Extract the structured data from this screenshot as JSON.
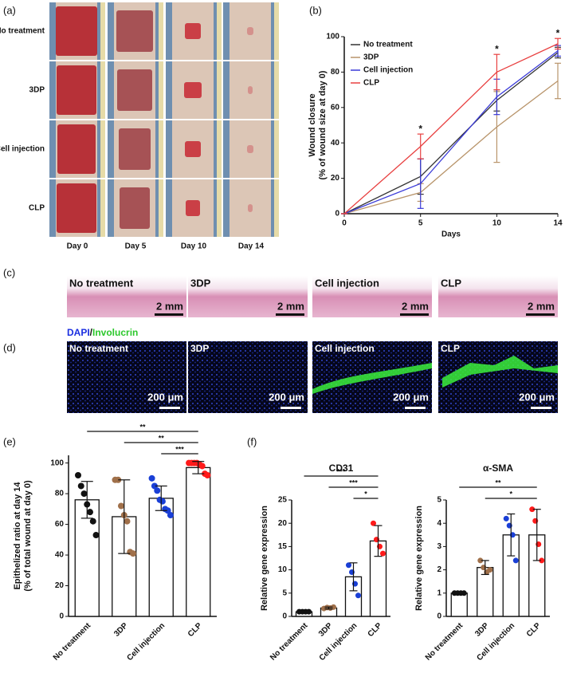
{
  "figure": {
    "panel_labels": [
      "(a)",
      "(b)",
      "(c)",
      "(d)",
      "(e)",
      "(f)"
    ],
    "photos": {
      "rows": [
        "No treatment",
        "3DP",
        "Cell injection",
        "CLP"
      ],
      "columns": [
        "Day 0",
        "Day 5",
        "Day 10",
        "Day 14"
      ]
    },
    "histology": {
      "labels": [
        "No treatment",
        "3DP",
        "Cell injection",
        "CLP"
      ],
      "scale_labels": [
        "2 mm",
        "2 mm",
        "2 mm",
        "2 mm"
      ]
    },
    "immuno": {
      "stain": [
        "DAPI",
        "/",
        "Involucrin"
      ],
      "labels": [
        "No treatment",
        "3DP",
        "Cell injection",
        "CLP"
      ],
      "scale_labels": [
        "200 μm",
        "200 μm",
        "200 μm",
        "200 μm"
      ]
    }
  },
  "chart_data": [
    {
      "type": "line",
      "xlabel": "Days",
      "ylabel": [
        "Wound closure",
        "(% of wound size at day 0)"
      ],
      "x": [
        0,
        5,
        10,
        14
      ],
      "xlim": [
        0,
        14
      ],
      "xticks": [
        0,
        5,
        10,
        14
      ],
      "ylim": [
        0,
        100
      ],
      "yticks": [
        0,
        20,
        40,
        60,
        80,
        100
      ],
      "series": [
        {
          "name": "No treatment",
          "color": "#333333",
          "values": [
            0,
            21,
            64,
            91
          ],
          "errors": [
            0,
            10,
            6,
            3
          ]
        },
        {
          "name": "3DP",
          "color": "#b8946a",
          "values": [
            0,
            12,
            49,
            75
          ],
          "errors": [
            0,
            5,
            20,
            10
          ]
        },
        {
          "name": "Cell injection",
          "color": "#3b3bd8",
          "values": [
            0,
            17,
            66,
            92
          ],
          "errors": [
            0,
            14,
            10,
            3
          ]
        },
        {
          "name": "CLP",
          "color": "#e84040",
          "values": [
            0,
            38,
            80,
            96
          ],
          "errors": [
            0,
            7,
            10,
            3
          ]
        }
      ],
      "significance": [
        {
          "x": 5,
          "label": "*"
        },
        {
          "x": 10,
          "label": "*"
        },
        {
          "x": 14,
          "label": "*"
        }
      ]
    },
    {
      "type": "bar",
      "ylabel": [
        "Epithelized ratio at day 14",
        "(% of total wound at day 0)"
      ],
      "categories": [
        "No treatment",
        "3DP",
        "Cell injection",
        "CLP"
      ],
      "values": [
        76,
        65,
        77,
        97
      ],
      "errors": [
        12,
        24,
        8,
        4
      ],
      "points": [
        [
          92,
          85,
          80,
          73,
          68,
          62,
          53
        ],
        [
          89,
          89,
          72,
          66,
          62,
          42,
          41
        ],
        [
          90,
          85,
          82,
          76,
          75,
          70,
          69,
          66
        ],
        [
          100,
          100,
          100,
          100,
          99,
          98,
          93,
          92
        ]
      ],
      "colors": [
        "#111111",
        "#a0704a",
        "#1a3fd6",
        "#ff1a1a"
      ],
      "ylim": [
        0,
        105
      ],
      "yticks": [
        0,
        20,
        40,
        60,
        80,
        100
      ],
      "brackets": [
        {
          "from": 0,
          "to": 3,
          "label": "**"
        },
        {
          "from": 1,
          "to": 3,
          "label": "**"
        },
        {
          "from": 2,
          "to": 3,
          "label": "***"
        }
      ]
    },
    {
      "type": "bar",
      "title": "CD31",
      "ylabel": [
        "Relative gene expression"
      ],
      "categories": [
        "No treatment",
        "3DP",
        "Cell injection",
        "CLP"
      ],
      "values": [
        1,
        1.8,
        8.5,
        16.2
      ],
      "errors": [
        0.1,
        0.2,
        3,
        3.3
      ],
      "points": [
        [
          1,
          1,
          1,
          1
        ],
        [
          1.7,
          1.9,
          1.8,
          2
        ],
        [
          11,
          9.5,
          7,
          4.5
        ],
        [
          20,
          16.5,
          15,
          13.5
        ]
      ],
      "colors": [
        "#111111",
        "#a0704a",
        "#1a3fd6",
        "#ff1a1a"
      ],
      "ylim": [
        0,
        25
      ],
      "yticks": [
        0,
        5,
        10,
        15,
        20,
        25
      ],
      "brackets": [
        {
          "from": 0,
          "to": 3,
          "label": "***"
        },
        {
          "from": 1,
          "to": 3,
          "label": "***"
        },
        {
          "from": 2,
          "to": 3,
          "label": "*"
        }
      ]
    },
    {
      "type": "bar",
      "title": "α-SMA",
      "ylabel": [
        "Relative gene expression"
      ],
      "categories": [
        "No treatment",
        "3DP",
        "Cell injection",
        "CLP"
      ],
      "values": [
        1,
        2.1,
        3.5,
        3.5
      ],
      "errors": [
        0.05,
        0.3,
        0.9,
        1.1
      ],
      "points": [
        [
          1,
          1,
          1,
          1
        ],
        [
          2.4,
          2.1,
          1.9,
          2
        ],
        [
          4.2,
          3.9,
          3.5,
          2.4
        ],
        [
          4.6,
          4.1,
          3.1,
          2.4
        ]
      ],
      "colors": [
        "#111111",
        "#a0704a",
        "#1a3fd6",
        "#ff1a1a"
      ],
      "ylim": [
        0,
        5
      ],
      "yticks": [
        0,
        1,
        2,
        3,
        4,
        5
      ],
      "brackets": [
        {
          "from": 0,
          "to": 3,
          "label": "**"
        },
        {
          "from": 1,
          "to": 3,
          "label": "*"
        }
      ]
    }
  ]
}
